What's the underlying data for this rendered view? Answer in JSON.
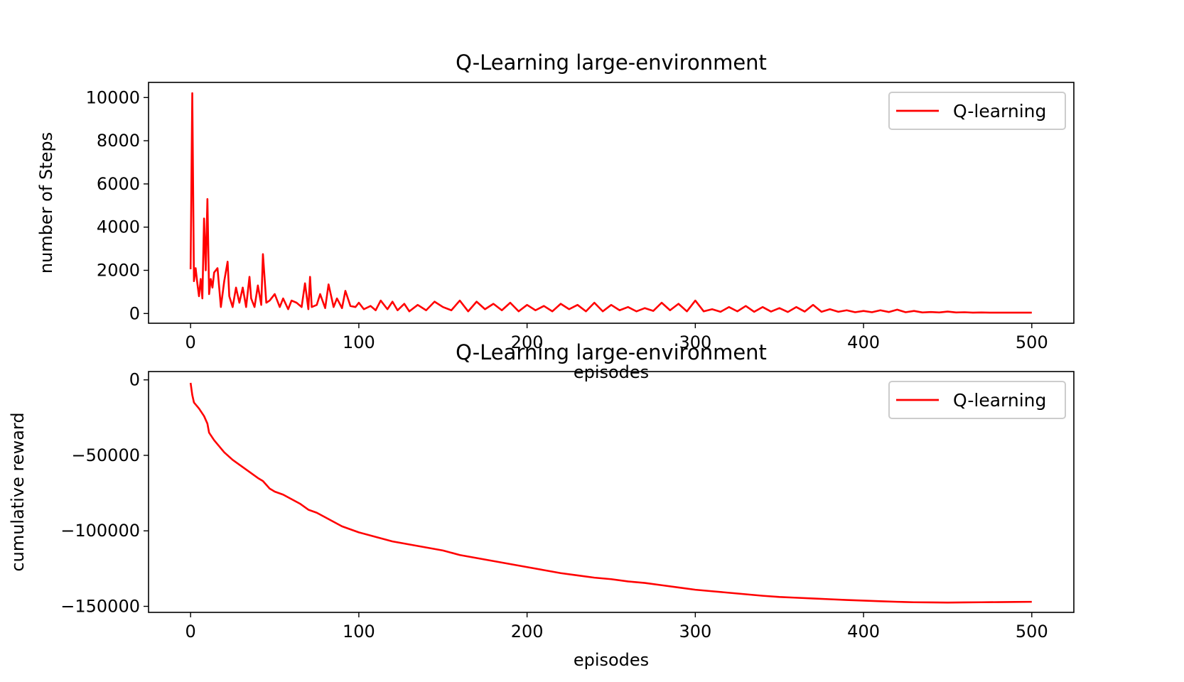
{
  "chart_data": [
    {
      "type": "line",
      "title": "Q-Learning large-environment",
      "xlabel": "episodes",
      "ylabel": "number of Steps",
      "xlim": [
        -25,
        525
      ],
      "ylim": [
        -450,
        10700
      ],
      "xticks": [
        0,
        100,
        200,
        300,
        400,
        500
      ],
      "xtick_labels": [
        "0",
        "100",
        "200",
        "300",
        "400",
        "500"
      ],
      "yticks": [
        0,
        2000,
        4000,
        6000,
        8000,
        10000
      ],
      "ytick_labels": [
        "0",
        "2000",
        "4000",
        "6000",
        "8000",
        "10000"
      ],
      "legend": {
        "position": "top-right",
        "entries": [
          "Q-learning"
        ]
      },
      "grid": false,
      "series": [
        {
          "name": "Q-learning",
          "color": "#ff0000",
          "x": [
            0,
            1,
            2,
            3,
            4,
            5,
            6,
            7,
            8,
            9,
            10,
            11,
            12,
            13,
            14,
            16,
            18,
            19,
            20,
            22,
            23,
            25,
            27,
            29,
            31,
            33,
            35,
            36,
            38,
            40,
            42,
            43,
            45,
            47,
            50,
            53,
            55,
            58,
            60,
            63,
            66,
            68,
            70,
            71,
            72,
            75,
            77,
            80,
            82,
            85,
            87,
            90,
            92,
            95,
            98,
            100,
            103,
            107,
            110,
            113,
            117,
            120,
            123,
            127,
            130,
            135,
            140,
            145,
            150,
            155,
            160,
            165,
            170,
            175,
            180,
            185,
            190,
            195,
            200,
            205,
            210,
            215,
            220,
            225,
            230,
            235,
            240,
            245,
            250,
            255,
            260,
            265,
            270,
            275,
            280,
            285,
            290,
            295,
            300,
            305,
            310,
            315,
            320,
            325,
            330,
            335,
            340,
            345,
            350,
            355,
            360,
            365,
            370,
            375,
            380,
            385,
            390,
            395,
            400,
            405,
            410,
            415,
            420,
            425,
            430,
            435,
            440,
            445,
            450,
            455,
            460,
            465,
            470,
            475,
            480,
            485,
            490,
            495,
            500
          ],
          "y": [
            2050,
            10200,
            1500,
            2100,
            1400,
            800,
            1600,
            700,
            4400,
            2000,
            5300,
            900,
            1600,
            1200,
            1900,
            2100,
            300,
            900,
            1500,
            2400,
            800,
            300,
            1200,
            500,
            1200,
            300,
            1700,
            700,
            300,
            1300,
            400,
            2750,
            500,
            600,
            900,
            300,
            700,
            200,
            600,
            500,
            300,
            1400,
            200,
            1700,
            300,
            400,
            900,
            250,
            1350,
            300,
            700,
            250,
            1050,
            350,
            300,
            500,
            200,
            350,
            150,
            600,
            200,
            550,
            150,
            450,
            100,
            400,
            150,
            550,
            300,
            150,
            600,
            100,
            550,
            200,
            450,
            150,
            500,
            100,
            400,
            150,
            350,
            100,
            450,
            200,
            400,
            100,
            500,
            100,
            400,
            150,
            300,
            100,
            250,
            120,
            500,
            150,
            450,
            100,
            600,
            100,
            200,
            80,
            300,
            100,
            350,
            80,
            300,
            90,
            250,
            70,
            300,
            90,
            400,
            80,
            200,
            80,
            150,
            60,
            120,
            60,
            150,
            70,
            180,
            60,
            120,
            50,
            70,
            50,
            90,
            50,
            60,
            40,
            50,
            40,
            40,
            40,
            40,
            40,
            40
          ]
        }
      ]
    },
    {
      "type": "line",
      "title": "Q-Learning large-environment",
      "xlabel": "episodes",
      "ylabel": "cumulative reward",
      "xlim": [
        -25,
        525
      ],
      "ylim": [
        -154000,
        5500
      ],
      "xticks": [
        0,
        100,
        200,
        300,
        400,
        500
      ],
      "xtick_labels": [
        "0",
        "100",
        "200",
        "300",
        "400",
        "500"
      ],
      "yticks": [
        0,
        -50000,
        -100000,
        -150000
      ],
      "ytick_labels": [
        "0",
        "−50000",
        "−100000",
        "−150000"
      ],
      "legend": {
        "position": "top-right",
        "entries": [
          "Q-learning"
        ]
      },
      "grid": false,
      "series": [
        {
          "name": "Q-learning",
          "color": "#ff0000",
          "x": [
            0,
            1,
            2,
            5,
            8,
            10,
            11,
            14,
            17,
            20,
            25,
            30,
            35,
            40,
            43,
            47,
            50,
            55,
            60,
            65,
            70,
            75,
            80,
            85,
            90,
            100,
            110,
            120,
            130,
            140,
            150,
            160,
            170,
            180,
            190,
            200,
            210,
            220,
            230,
            240,
            250,
            260,
            270,
            280,
            290,
            300,
            310,
            320,
            330,
            340,
            350,
            360,
            370,
            380,
            390,
            400,
            410,
            420,
            430,
            440,
            450,
            460,
            470,
            480,
            490,
            500
          ],
          "y": [
            -2000,
            -10000,
            -15000,
            -19000,
            -24000,
            -29000,
            -35000,
            -40000,
            -44000,
            -48000,
            -53000,
            -57000,
            -61000,
            -65000,
            -67000,
            -72000,
            -74000,
            -76000,
            -79000,
            -82000,
            -86000,
            -88000,
            -91000,
            -94000,
            -97000,
            -101000,
            -104000,
            -107000,
            -109000,
            -111000,
            -113000,
            -116000,
            -118000,
            -120000,
            -122000,
            -124000,
            -126000,
            -128000,
            -129500,
            -131000,
            -132000,
            -133500,
            -134500,
            -136000,
            -137500,
            -139000,
            -140000,
            -141000,
            -142000,
            -143000,
            -143800,
            -144300,
            -144800,
            -145300,
            -145800,
            -146200,
            -146600,
            -147000,
            -147300,
            -147400,
            -147500,
            -147400,
            -147300,
            -147200,
            -147100,
            -147000
          ]
        }
      ]
    }
  ]
}
